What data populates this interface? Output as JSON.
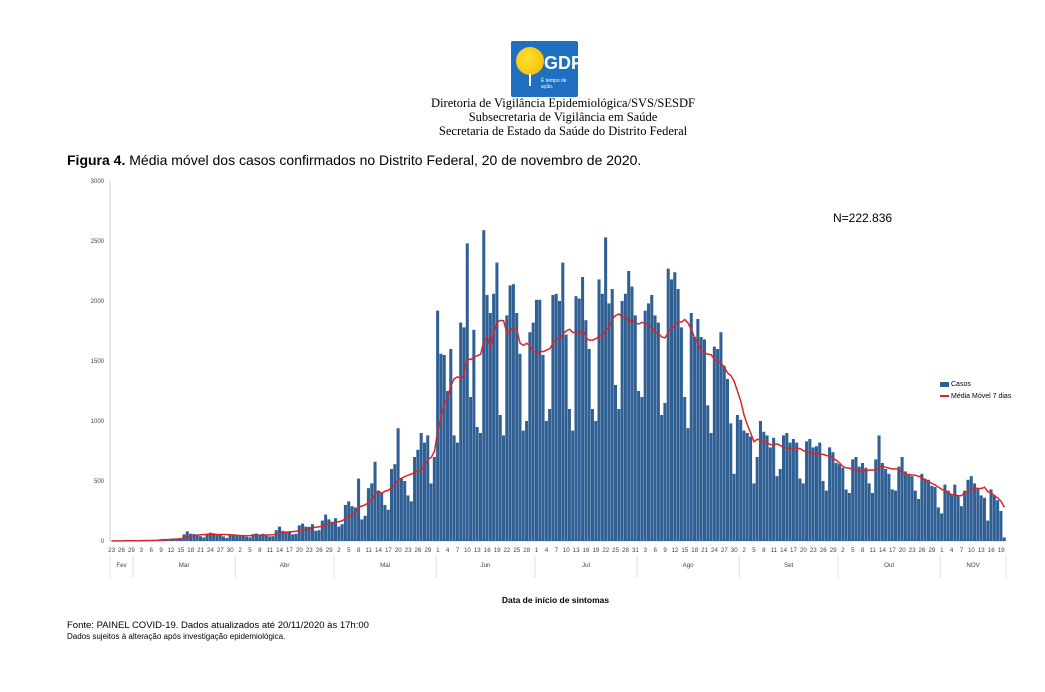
{
  "header": {
    "logo_text": "GDF",
    "logo_slogan": "É tempo de ação.",
    "lines": [
      "Diretoria de Vigilância Epidemiológica/SVS/SESDF",
      "Subsecretaria de Vigilância em Saúde",
      "Secretaria de Estado da Saúde do Distrito Federal"
    ]
  },
  "figure": {
    "label": "Figura 4.",
    "caption": " Média móvel dos casos confirmados no Distrito Federal, 20 de novembro de 2020."
  },
  "footer": {
    "source": "Fonte: PAINEL COVID-19. Dados atualizados até 20/11/2020 às 17h:00",
    "note": "Dados sujeitos à alteração após investigação epidemiológica."
  },
  "colors": {
    "bars": "#2f5f93",
    "moving_average": "#d7262b"
  },
  "chart_data": {
    "type": "bar",
    "title": "",
    "annotation": "N=222.836",
    "xlabel": "Data de início de sintomas",
    "ylabel": "",
    "ylim": [
      0,
      3000
    ],
    "yticks": [
      0,
      500,
      1000,
      1500,
      2000,
      2500,
      3000
    ],
    "grid": false,
    "legend_position": "right",
    "x_tick_labels": [
      "23",
      "26",
      "29",
      "3",
      "6",
      "9",
      "12",
      "15",
      "18",
      "21",
      "24",
      "27",
      "30",
      "2",
      "5",
      "8",
      "11",
      "14",
      "17",
      "20",
      "23",
      "26",
      "29",
      "2",
      "5",
      "8",
      "11",
      "14",
      "17",
      "20",
      "23",
      "26",
      "29",
      "1",
      "4",
      "7",
      "10",
      "13",
      "16",
      "19",
      "22",
      "25",
      "28",
      "1",
      "4",
      "7",
      "10",
      "13",
      "16",
      "19",
      "22",
      "25",
      "28",
      "31",
      "3",
      "6",
      "9",
      "12",
      "15",
      "18",
      "21",
      "24",
      "27",
      "30",
      "2",
      "5",
      "8",
      "11",
      "14",
      "17",
      "20",
      "23",
      "26",
      "29",
      "2",
      "5",
      "8",
      "11",
      "14",
      "17",
      "20",
      "23",
      "26",
      "29",
      "1",
      "4",
      "7",
      "10",
      "13",
      "16",
      "19"
    ],
    "months": [
      "Fev",
      "Mar",
      "Abr",
      "Mai",
      "Jun",
      "Jul",
      "Ago",
      "Set",
      "Out",
      "NOV"
    ],
    "x_range": [
      "2020-02-23",
      "2020-11-20"
    ],
    "series": [
      {
        "name": "Casos",
        "type": "bar",
        "values": [
          0,
          1,
          2,
          2,
          3,
          2,
          1,
          2,
          5,
          6,
          5,
          6,
          7,
          4,
          8,
          15,
          18,
          17,
          20,
          22,
          14,
          25,
          55,
          80,
          60,
          58,
          52,
          40,
          30,
          62,
          70,
          65,
          58,
          55,
          38,
          25,
          52,
          55,
          50,
          48,
          45,
          35,
          30,
          58,
          62,
          55,
          60,
          52,
          38,
          40,
          90,
          120,
          85,
          80,
          78,
          55,
          60,
          130,
          145,
          120,
          118,
          140,
          85,
          90,
          170,
          220,
          180,
          160,
          190,
          120,
          140,
          300,
          330,
          290,
          280,
          520,
          180,
          210,
          440,
          480,
          660,
          420,
          400,
          300,
          260,
          600,
          640,
          940,
          520,
          500,
          380,
          330,
          700,
          760,
          900,
          820,
          880,
          480,
          700,
          1920,
          1560,
          1550,
          1250,
          1600,
          880,
          820,
          1820,
          1780,
          2480,
          1200,
          1760,
          950,
          900,
          2590,
          2050,
          1900,
          2060,
          2320,
          1050,
          880,
          1880,
          2130,
          2140,
          1900,
          1560,
          920,
          1000,
          1740,
          1820,
          2010,
          2010,
          1550,
          1000,
          1100,
          2050,
          2060,
          2000,
          2320,
          1720,
          1100,
          920,
          2040,
          2020,
          2200,
          1840,
          1600,
          1100,
          1000,
          2180,
          2060,
          2530,
          1980,
          2100,
          1300,
          1100,
          2000,
          2060,
          2250,
          2120,
          1880,
          1250,
          1200,
          1920,
          1980,
          2050,
          1880,
          1820,
          1050,
          1150,
          2270,
          2180,
          2240,
          2100,
          1780,
          1200,
          940,
          1900,
          1700,
          1850,
          1700,
          1680,
          1130,
          900,
          1620,
          1600,
          1740,
          1460,
          1350,
          980,
          560,
          1050,
          1010,
          920,
          900,
          870,
          480,
          700,
          1000,
          910,
          880,
          780,
          860,
          540,
          600,
          880,
          900,
          820,
          850,
          820,
          520,
          480,
          830,
          850,
          780,
          790,
          820,
          500,
          420,
          780,
          740,
          650,
          640,
          610,
          430,
          400,
          680,
          700,
          620,
          650,
          610,
          480,
          400,
          680,
          880,
          650,
          600,
          560,
          430,
          420,
          620,
          700,
          580,
          560,
          540,
          420,
          350,
          560,
          520,
          510,
          460,
          450,
          280,
          230,
          470,
          420,
          390,
          470,
          380,
          290,
          420,
          510,
          540,
          480,
          440,
          380,
          360,
          170,
          430,
          380,
          340,
          250,
          30
        ]
      },
      {
        "name": "Média Móvel 7 dias",
        "type": "line",
        "window": 7
      }
    ]
  }
}
